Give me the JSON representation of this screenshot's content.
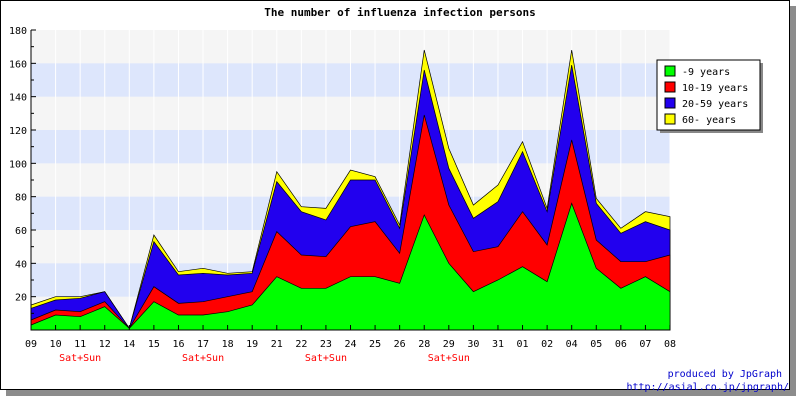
{
  "chart_data": {
    "type": "area",
    "stacked": true,
    "title": "The number of influenza infection persons",
    "ylim": [
      0,
      180
    ],
    "yticks": [
      20,
      40,
      60,
      80,
      100,
      120,
      140,
      160,
      180
    ],
    "categories": [
      "09",
      "10",
      "11",
      "12",
      "14",
      "15",
      "16",
      "17",
      "18",
      "19",
      "21",
      "22",
      "23",
      "24",
      "25",
      "26",
      "28",
      "29",
      "30",
      "31",
      "01",
      "02",
      "04",
      "05",
      "06",
      "07",
      "08"
    ],
    "sublabels": [
      {
        "index": 2,
        "text": "Sat+Sun"
      },
      {
        "index": 7,
        "text": "Sat+Sun"
      },
      {
        "index": 12,
        "text": "Sat+Sun"
      },
      {
        "index": 17,
        "text": "Sat+Sun"
      }
    ],
    "series": [
      {
        "name": "-9 years",
        "color": "#00ff00",
        "values": [
          3,
          9,
          8,
          14,
          1,
          17,
          9,
          9,
          11,
          15,
          32,
          25,
          25,
          32,
          32,
          28,
          69,
          40,
          23,
          30,
          38,
          29,
          76,
          37,
          25,
          32,
          23
        ]
      },
      {
        "name": "10-19 years",
        "color": "#ff0000",
        "values": [
          3,
          3,
          3,
          3,
          0,
          9,
          7,
          8,
          9,
          8,
          27,
          20,
          19,
          30,
          33,
          18,
          60,
          35,
          24,
          20,
          33,
          22,
          38,
          17,
          16,
          9,
          22
        ]
      },
      {
        "name": "20-59 years",
        "color": "#2200ee",
        "values": [
          7,
          6,
          8,
          6,
          0,
          27,
          17,
          17,
          13,
          11,
          30,
          26,
          22,
          28,
          25,
          15,
          27,
          22,
          20,
          27,
          36,
          20,
          45,
          22,
          17,
          24,
          15
        ]
      },
      {
        "name": "60- years",
        "color": "#ffff00",
        "values": [
          2,
          2,
          1,
          0,
          0,
          4,
          2,
          3,
          1,
          1,
          6,
          3,
          7,
          6,
          2,
          2,
          12,
          12,
          8,
          10,
          6,
          2,
          9,
          3,
          3,
          6,
          8
        ]
      }
    ],
    "legend_position": "right",
    "grid": true,
    "credits": [
      "produced by JpGraph",
      "http://asial.co.jp/jpgraph/"
    ]
  }
}
